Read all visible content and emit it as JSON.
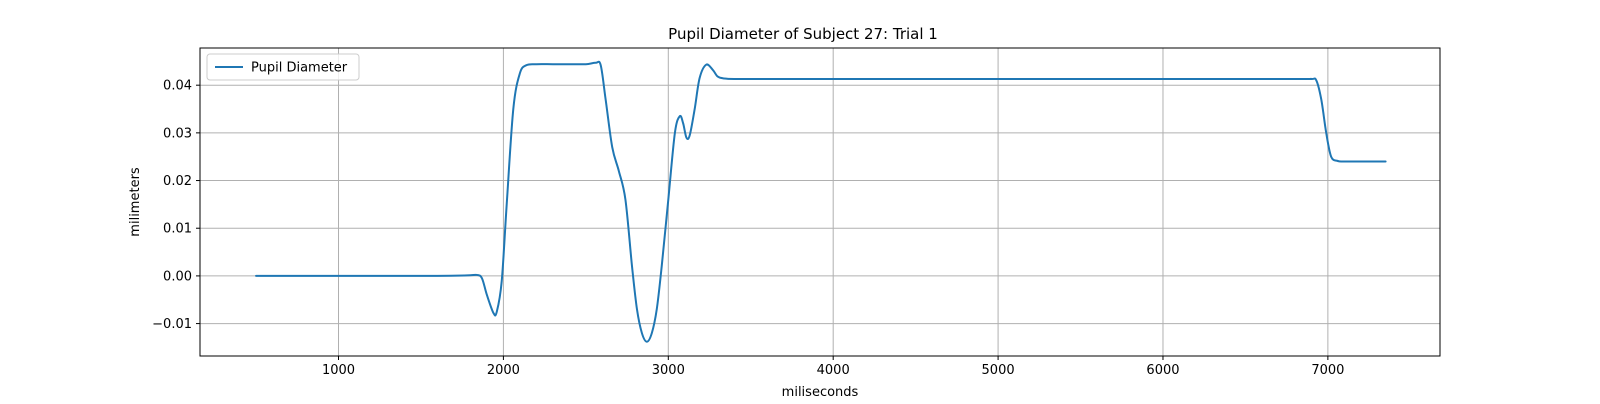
{
  "chart_data": {
    "type": "line",
    "title": "Pupil Diameter of Subject 27: Trial 1",
    "xlabel": "miliseconds",
    "ylabel": "milimeters",
    "xlim": [
      160,
      7680
    ],
    "ylim": [
      -0.0168,
      0.0478
    ],
    "xticks": [
      1000,
      2000,
      3000,
      4000,
      5000,
      6000,
      7000
    ],
    "xtick_labels": [
      "1000",
      "2000",
      "3000",
      "4000",
      "5000",
      "6000",
      "7000"
    ],
    "yticks": [
      -0.01,
      0.0,
      0.01,
      0.02,
      0.03,
      0.04
    ],
    "ytick_labels": [
      "−0.01",
      "0.00",
      "0.01",
      "0.02",
      "0.03",
      "0.04"
    ],
    "grid": true,
    "legend_position": "upper-left",
    "series": [
      {
        "name": "Pupil Diameter",
        "color": "#1f77b4",
        "x": [
          500,
          800,
          1200,
          1600,
          1780,
          1840,
          1870,
          1900,
          1940,
          1960,
          1990,
          2020,
          2060,
          2100,
          2140,
          2200,
          2300,
          2400,
          2500,
          2560,
          2590,
          2620,
          2660,
          2700,
          2740,
          2780,
          2810,
          2840,
          2870,
          2900,
          2930,
          2960,
          3000,
          3040,
          3070,
          3090,
          3110,
          3130,
          3160,
          3190,
          3230,
          3270,
          3300,
          3340,
          3400,
          3600,
          4000,
          5000,
          6000,
          6800,
          6900,
          6930,
          6960,
          6990,
          7020,
          7060,
          7100,
          7200,
          7350
        ],
        "values": [
          0.0,
          0.0,
          0.0,
          0.0,
          0.0001,
          0.0002,
          -0.0005,
          -0.004,
          -0.0078,
          -0.0075,
          -0.001,
          0.015,
          0.035,
          0.0425,
          0.0442,
          0.0444,
          0.0444,
          0.0444,
          0.0444,
          0.0447,
          0.0442,
          0.037,
          0.027,
          0.022,
          0.016,
          0.002,
          -0.007,
          -0.012,
          -0.0138,
          -0.012,
          -0.007,
          0.002,
          0.016,
          0.03,
          0.0335,
          0.032,
          0.029,
          0.0295,
          0.035,
          0.0415,
          0.0443,
          0.0432,
          0.0418,
          0.0414,
          0.0413,
          0.0413,
          0.0413,
          0.0413,
          0.0413,
          0.0413,
          0.0413,
          0.041,
          0.037,
          0.03,
          0.025,
          0.0241,
          0.024,
          0.024,
          0.024
        ]
      }
    ]
  }
}
